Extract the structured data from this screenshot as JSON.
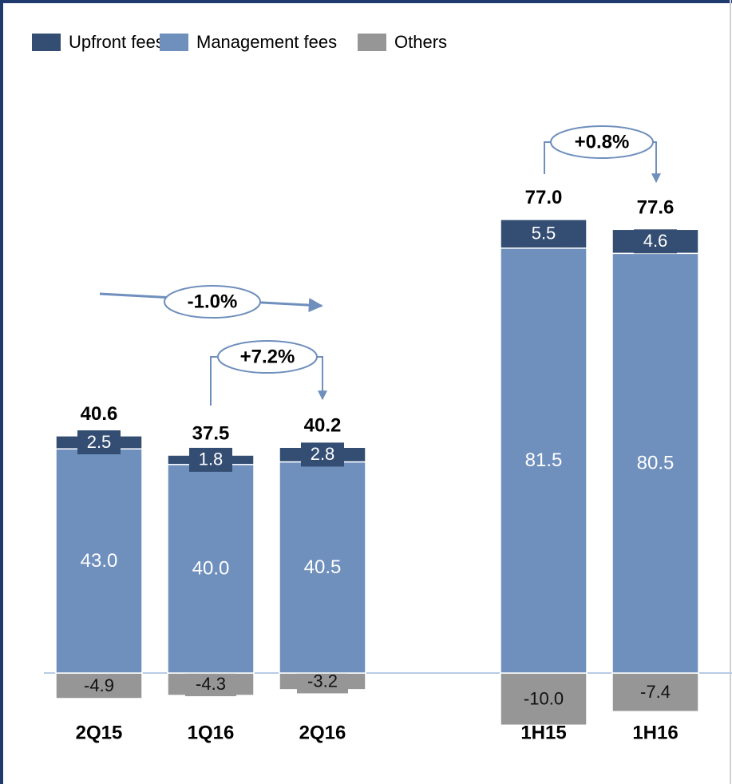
{
  "chart_data": {
    "type": "stacked_bar",
    "categories": [
      "2Q15",
      "1Q16",
      "2Q16",
      "1H15",
      "1H16"
    ],
    "series": [
      {
        "name": "Upfront fees",
        "color": "#334d73",
        "values": [
          2.5,
          1.8,
          2.8,
          5.5,
          4.6
        ]
      },
      {
        "name": "Management fees",
        "color": "#6f8fbd",
        "values": [
          43.0,
          40.0,
          40.5,
          81.5,
          80.5
        ],
        "value_labels": [
          "43.0",
          "40.0",
          "40.5",
          "81.5",
          "80.5"
        ]
      },
      {
        "name": "Others",
        "color": "#969696",
        "values": [
          -4.9,
          -4.3,
          -3.2,
          -10.0,
          -7.4
        ],
        "value_labels": [
          "-4.9",
          "-4.3",
          "-3.2",
          "-10.0",
          "-7.4"
        ]
      }
    ],
    "totals": {
      "values": [
        40.6,
        37.5,
        40.2,
        77.0,
        77.6
      ],
      "value_labels": [
        "40.6",
        "37.5",
        "40.2",
        "77.0",
        "77.6"
      ]
    },
    "annotations": [
      "-1.0%",
      "+7.2%",
      "+0.8%"
    ]
  }
}
